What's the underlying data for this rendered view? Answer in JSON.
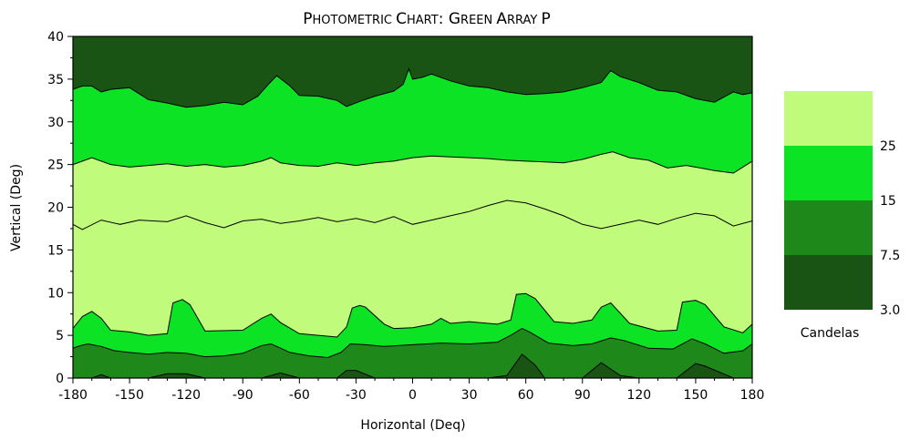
{
  "chart_data": {
    "type": "contour",
    "title": "PHOTOMETRIC CHART: GREEN ARRAY P",
    "xlabel": "Horizontal (Deq)",
    "ylabel": "Vertical (Deg)",
    "xlim": [
      -180,
      180
    ],
    "ylim": [
      0,
      40
    ],
    "xticks": [
      -180,
      -150,
      -120,
      -90,
      -60,
      -30,
      0,
      30,
      60,
      90,
      120,
      150,
      180
    ],
    "yticks": [
      0,
      5,
      10,
      15,
      20,
      25,
      30,
      35,
      40
    ],
    "legend": {
      "title": "Candelas",
      "placement": "right",
      "levels": [
        "3.0",
        "7.5",
        "15",
        "25"
      ],
      "colors": [
        "#195414",
        "#1e891a",
        "#0de325",
        "#c1fb7b"
      ]
    },
    "contours": [
      {
        "level": "3.0",
        "x": [
          -180,
          -170,
          -165,
          -160,
          -140,
          -130,
          -120,
          -110,
          -90,
          -80,
          -70,
          -60,
          -40,
          -35,
          -30,
          -20,
          0,
          20,
          40,
          50,
          58,
          65,
          70,
          90,
          100,
          110,
          120,
          140,
          150,
          155,
          170,
          180
        ],
        "y": [
          0,
          0,
          0.4,
          0,
          0,
          0.5,
          0.5,
          0,
          0,
          0,
          0.6,
          0,
          0,
          0.9,
          0.9,
          0,
          0,
          0,
          0,
          0.3,
          2.8,
          1.5,
          0,
          0,
          1.8,
          0.3,
          0,
          0,
          1.7,
          1.4,
          0,
          0
        ]
      },
      {
        "level": "7.5",
        "x": [
          -180,
          -176,
          -172,
          -165,
          -158,
          -150,
          -140,
          -130,
          -120,
          -110,
          -100,
          -90,
          -80,
          -75,
          -65,
          -55,
          -45,
          -38,
          -33,
          -25,
          -15,
          0,
          15,
          30,
          45,
          52,
          58,
          62,
          72,
          85,
          95,
          105,
          112,
          125,
          138,
          148,
          155,
          165,
          175,
          180
        ],
        "y": [
          3.5,
          3.8,
          4.0,
          3.7,
          3.2,
          3.0,
          2.8,
          3.0,
          2.9,
          2.5,
          2.6,
          2.9,
          3.8,
          4.0,
          3.0,
          2.6,
          2.4,
          3.0,
          4.0,
          3.9,
          3.7,
          3.9,
          4.1,
          4.0,
          4.2,
          5.0,
          5.8,
          5.4,
          4.1,
          3.8,
          4.0,
          4.7,
          4.4,
          3.5,
          3.4,
          4.6,
          4.0,
          2.9,
          3.2,
          4.0
        ]
      },
      {
        "level": "15",
        "x": [
          -180,
          -175,
          -170,
          -165,
          -160,
          -150,
          -140,
          -130,
          -127,
          -122,
          -118,
          -110,
          -90,
          -80,
          -75,
          -70,
          -60,
          -50,
          -40,
          -35,
          -32,
          -28,
          -25,
          -15,
          -10,
          0,
          10,
          15,
          20,
          30,
          45,
          52,
          55,
          60,
          65,
          75,
          85,
          95,
          100,
          105,
          115,
          130,
          140,
          143,
          150,
          155,
          165,
          175,
          180
        ],
        "y": [
          5.8,
          7.2,
          7.8,
          7.0,
          5.6,
          5.4,
          5.0,
          5.2,
          8.8,
          9.2,
          8.6,
          5.5,
          5.6,
          7.0,
          7.5,
          6.5,
          5.2,
          5.0,
          4.8,
          6.0,
          8.2,
          8.5,
          8.3,
          6.3,
          5.8,
          5.9,
          6.3,
          7.0,
          6.4,
          6.6,
          6.3,
          6.8,
          9.8,
          9.9,
          9.3,
          6.6,
          6.4,
          6.8,
          8.3,
          8.8,
          6.4,
          5.5,
          5.6,
          8.9,
          9.1,
          8.6,
          6.0,
          5.3,
          6.3
        ]
      },
      {
        "level": "25",
        "x": [
          -180,
          -175,
          -165,
          -155,
          -145,
          -130,
          -120,
          -110,
          -100,
          -90,
          -80,
          -70,
          -60,
          -50,
          -40,
          -30,
          -20,
          -10,
          0,
          10,
          20,
          30,
          40,
          50,
          60,
          70,
          80,
          90,
          100,
          110,
          120,
          130,
          140,
          150,
          160,
          170,
          180
        ],
        "y": [
          18.0,
          17.4,
          18.5,
          18.0,
          18.5,
          18.3,
          19.0,
          18.2,
          17.6,
          18.4,
          18.6,
          18.1,
          18.4,
          18.8,
          18.3,
          18.7,
          18.2,
          18.9,
          18.0,
          18.5,
          19.0,
          19.5,
          20.2,
          20.8,
          20.5,
          19.8,
          19.0,
          18.0,
          17.5,
          18.0,
          18.5,
          18.0,
          18.7,
          19.3,
          19.0,
          17.8,
          18.4
        ]
      },
      {
        "level": "15",
        "x": [
          -180,
          -175,
          -170,
          -160,
          -150,
          -140,
          -130,
          -120,
          -110,
          -100,
          -90,
          -80,
          -75,
          -70,
          -60,
          -50,
          -40,
          -30,
          -20,
          -10,
          0,
          10,
          20,
          30,
          40,
          50,
          60,
          70,
          80,
          90,
          100,
          106,
          115,
          125,
          135,
          145,
          160,
          170,
          180
        ],
        "y": [
          25.0,
          25.4,
          25.8,
          25.0,
          24.7,
          24.9,
          25.1,
          24.8,
          25.0,
          24.7,
          24.9,
          25.4,
          25.8,
          25.2,
          24.9,
          24.8,
          25.2,
          24.9,
          25.2,
          25.4,
          25.8,
          26.0,
          25.9,
          25.8,
          25.7,
          25.5,
          25.4,
          25.3,
          25.2,
          25.6,
          26.2,
          26.5,
          25.8,
          25.5,
          24.6,
          24.9,
          24.3,
          24.0,
          25.4
        ]
      },
      {
        "level": "7.5",
        "x": [
          -180,
          -175,
          -170,
          -165,
          -160,
          -150,
          -140,
          -130,
          -120,
          -110,
          -100,
          -90,
          -82,
          -76,
          -72,
          -65,
          -60,
          -50,
          -40,
          -35,
          -28,
          -20,
          -10,
          -5,
          -2,
          0,
          5,
          10,
          20,
          30,
          40,
          50,
          60,
          70,
          80,
          90,
          100,
          105,
          110,
          120,
          130,
          140,
          150,
          160,
          170,
          175,
          180
        ],
        "y": [
          33.8,
          34.2,
          34.2,
          33.5,
          33.8,
          34.0,
          32.6,
          32.2,
          31.7,
          31.9,
          32.3,
          32.0,
          33.0,
          34.5,
          35.4,
          34.2,
          33.1,
          33.0,
          32.5,
          31.8,
          32.4,
          33.0,
          33.6,
          34.4,
          36.2,
          35.0,
          35.2,
          35.6,
          34.8,
          34.2,
          34.0,
          33.5,
          33.2,
          33.3,
          33.5,
          34.0,
          34.6,
          36.0,
          35.3,
          34.6,
          33.7,
          33.5,
          32.7,
          32.3,
          33.5,
          33.2,
          33.4
        ]
      }
    ]
  }
}
